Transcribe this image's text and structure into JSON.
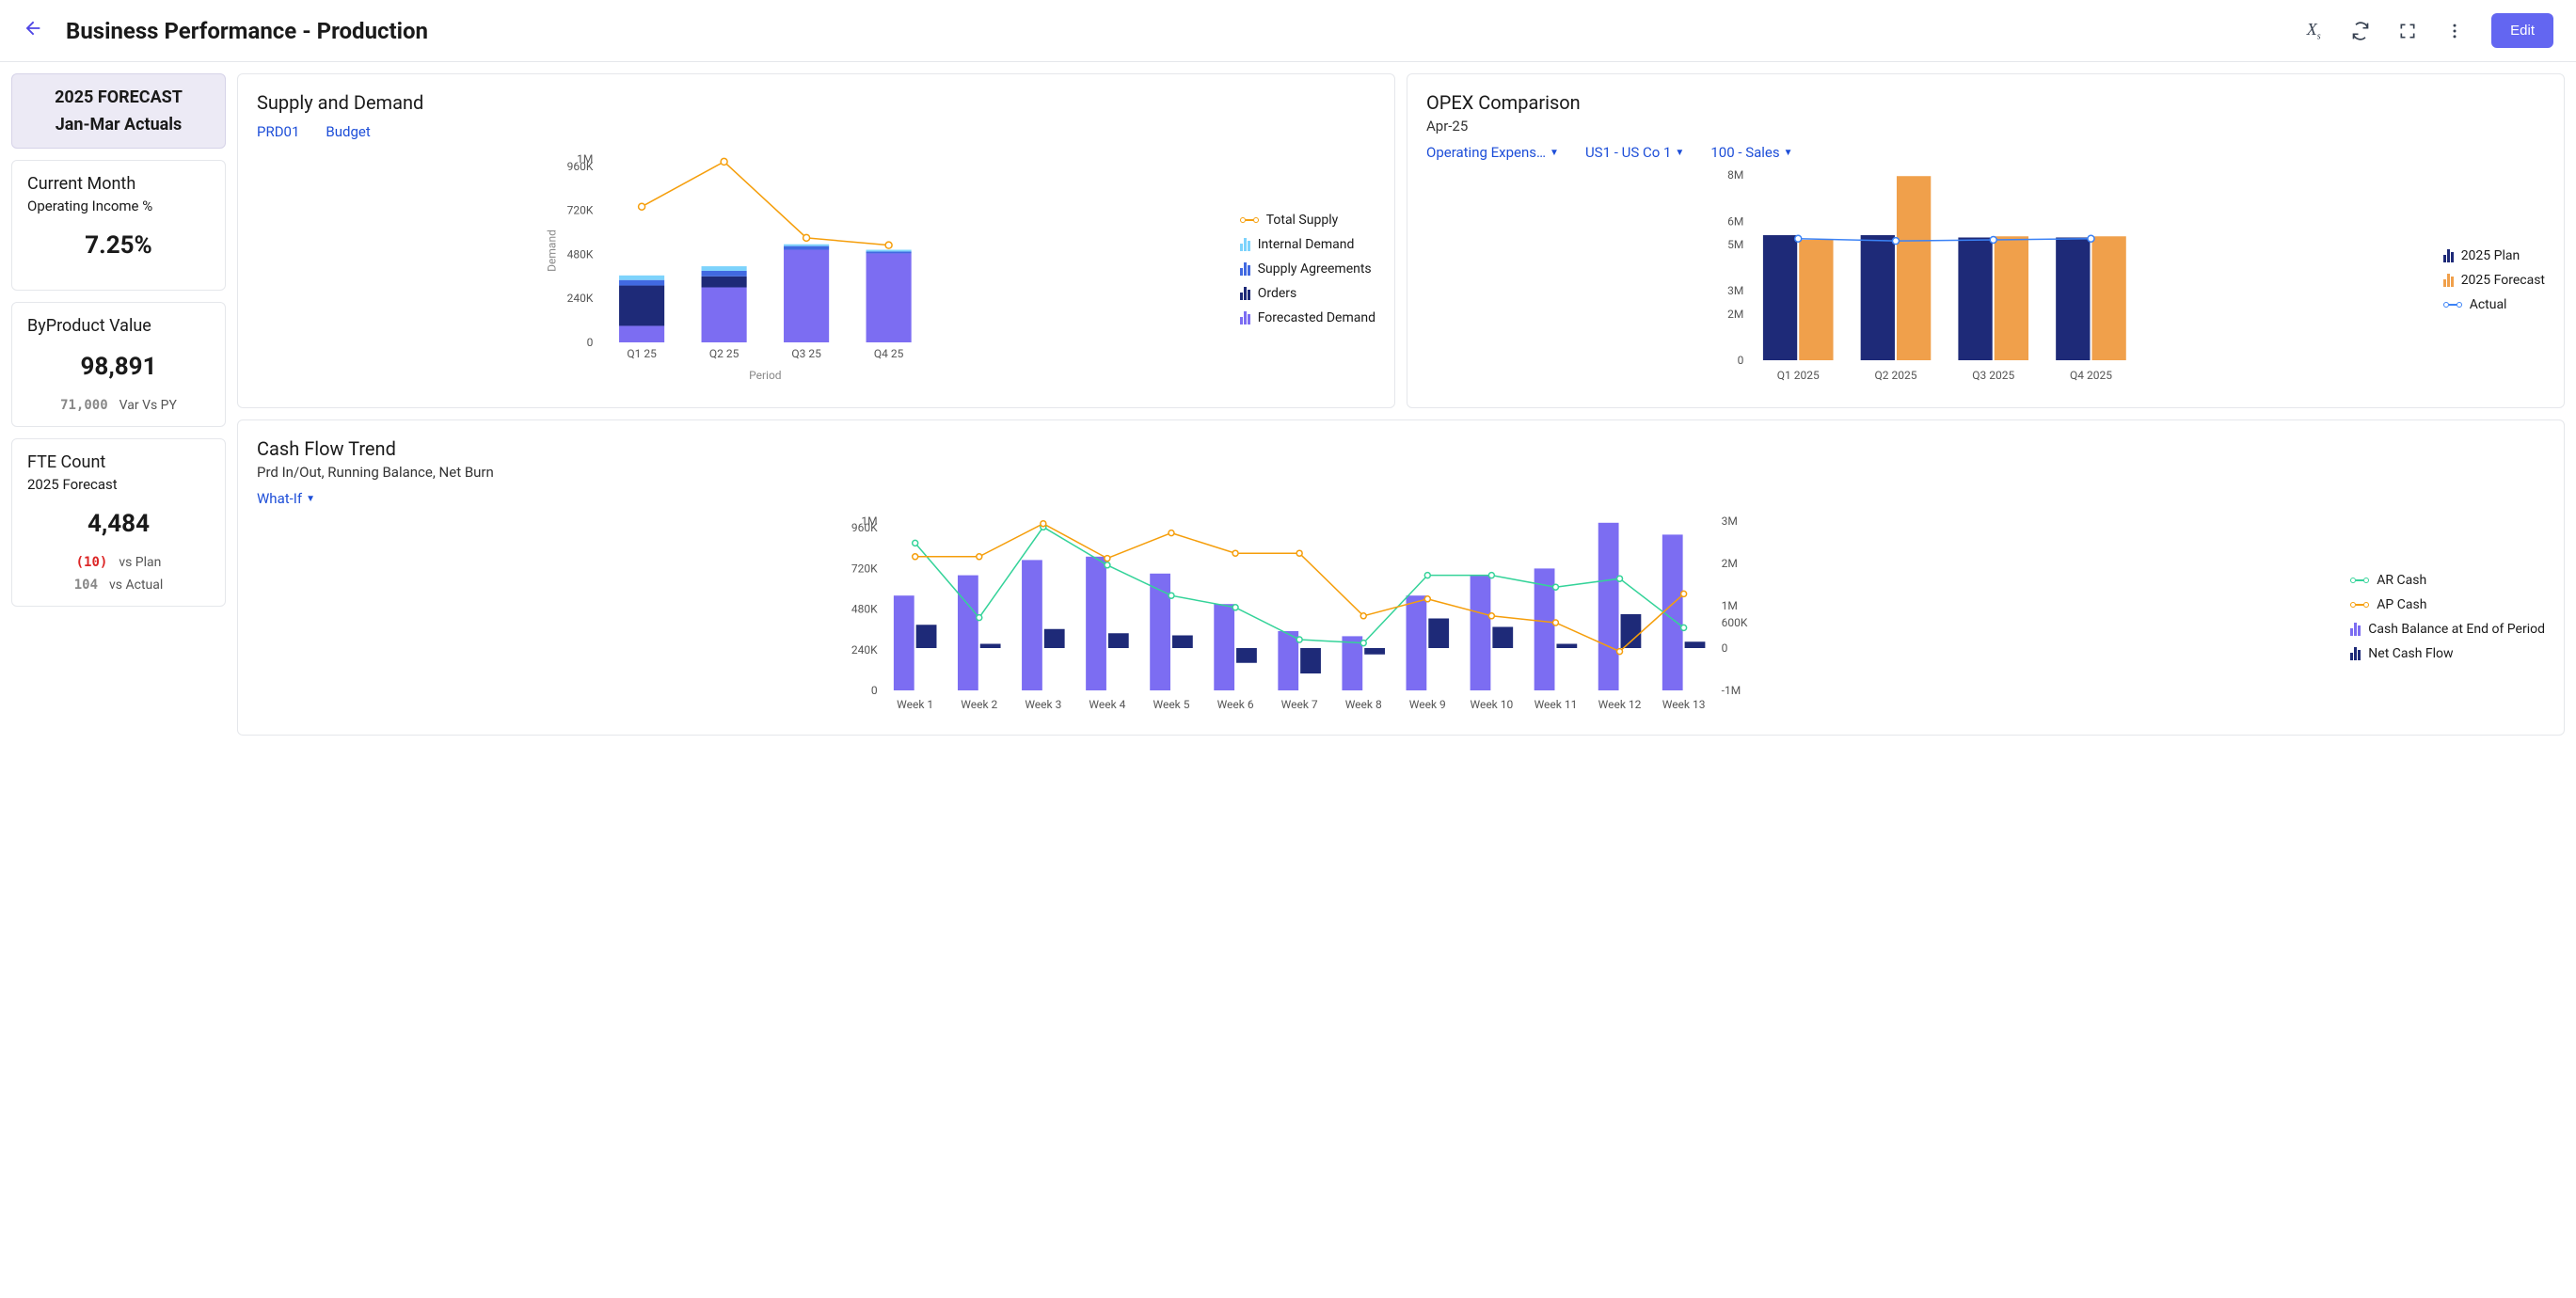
{
  "header": {
    "title": "Business Performance - Production",
    "edit_label": "Edit"
  },
  "sidebar": {
    "forecast": {
      "line1": "2025 FORECAST",
      "line2": "Jan-Mar Actuals"
    },
    "kpi1": {
      "title": "Current Month",
      "sub": "Operating Income %",
      "value": "7.25%"
    },
    "kpi2": {
      "title": "ByProduct Value",
      "value": "98,891",
      "var_num": "71,000",
      "var_label": "Var Vs PY"
    },
    "kpi3": {
      "title": "FTE Count",
      "sub": "2025 Forecast",
      "value": "4,484",
      "r1_num": "(10)",
      "r1_label": "vs Plan",
      "r1_neg": true,
      "r2_num": "104",
      "r2_label": "vs Actual"
    }
  },
  "supply_demand": {
    "title": "Supply and Demand",
    "filters": [
      "PRD01",
      "Budget"
    ],
    "type": "stacked-bar-with-line",
    "x_categories": [
      "Q1 25",
      "Q2 25",
      "Q3 25",
      "Q4 25"
    ],
    "x_axis_label": "Period",
    "y_axis_label": "Demand",
    "y_ticks": [
      0,
      240000,
      480000,
      720000,
      960000,
      1000000
    ],
    "y_tick_labels": [
      "0",
      "240K",
      "480K",
      "720K",
      "960K",
      "1M"
    ],
    "ylim": [
      0,
      1000000
    ],
    "series": {
      "forecasted_demand": {
        "label": "Forecasted Demand",
        "color": "#7c6df2",
        "values": [
          90000,
          300000,
          505000,
          485000
        ]
      },
      "orders": {
        "label": "Orders",
        "color": "#1e2a78",
        "values": [
          220000,
          60000,
          0,
          0
        ]
      },
      "supply_agreements": {
        "label": "Supply Agreements",
        "color": "#4169e1",
        "values": [
          30000,
          30000,
          20000,
          10000
        ]
      },
      "internal_demand": {
        "label": "Internal Demand",
        "color": "#7dd3fc",
        "values": [
          25000,
          25000,
          10000,
          10000
        ]
      },
      "total_supply_line": {
        "label": "Total Supply",
        "color": "#f59e0b",
        "values": [
          740000,
          985000,
          570000,
          530000
        ]
      }
    },
    "bar_width": 0.55,
    "background_color": "#ffffff",
    "grid_color": "#eeeeee"
  },
  "opex": {
    "title": "OPEX Comparison",
    "sub": "Apr-25",
    "filters": [
      "Operating Expens…",
      "US1 - US Co 1",
      "100 - Sales"
    ],
    "type": "grouped-bar-with-line",
    "x_categories": [
      "Q1 2025",
      "Q2 2025",
      "Q3 2025",
      "Q4 2025"
    ],
    "y_ticks": [
      0,
      2000000,
      3000000,
      5000000,
      6000000,
      8000000
    ],
    "y_tick_labels": [
      "0",
      "2M",
      "3M",
      "5M",
      "6M",
      "8M"
    ],
    "ylim": [
      0,
      8000000
    ],
    "series": {
      "plan": {
        "label": "2025 Plan",
        "color": "#1e2a78",
        "values": [
          5400000,
          5400000,
          5300000,
          5300000
        ]
      },
      "forecast": {
        "label": "2025 Forecast",
        "color": "#f0a04b",
        "values": [
          5200000,
          7950000,
          5350000,
          5350000
        ]
      },
      "actual_line": {
        "label": "Actual",
        "color": "#3b82f6",
        "values": [
          5250000,
          5150000,
          5200000,
          5250000
        ]
      }
    },
    "bar_width": 0.35,
    "background_color": "#ffffff"
  },
  "cashflow": {
    "title": "Cash Flow Trend",
    "sub": "Prd In/Out, Running Balance, Net Burn",
    "filter": "What-If",
    "type": "combo-bar-line-dual-axis",
    "x_categories": [
      "Week 1",
      "Week 2",
      "Week 3",
      "Week 4",
      "Week 5",
      "Week 6",
      "Week 7",
      "Week 8",
      "Week 9",
      "Week 10",
      "Week 11",
      "Week 12",
      "Week 13"
    ],
    "y_left_ticks": [
      0,
      240000,
      480000,
      720000,
      960000,
      1000000
    ],
    "y_left_labels": [
      "0",
      "240K",
      "480K",
      "720K",
      "960K",
      "1M"
    ],
    "y_left_lim": [
      0,
      1000000
    ],
    "y_right_ticks": [
      -1000000,
      0,
      600000,
      1000000,
      2000000,
      3000000
    ],
    "y_right_labels": [
      "-1M",
      "0",
      "600K",
      "1M",
      "2M",
      "3M"
    ],
    "y_right_lim": [
      -1000000,
      3000000
    ],
    "series": {
      "cash_balance": {
        "label": "Cash Balance at End of Period",
        "color": "#7c6df2",
        "axis": "left",
        "values": [
          560000,
          680000,
          770000,
          790000,
          690000,
          510000,
          350000,
          320000,
          560000,
          680000,
          720000,
          990000,
          920000
        ]
      },
      "net_cash_flow": {
        "label": "Net Cash Flow",
        "color": "#1e2a78",
        "axis": "right",
        "values": [
          550000,
          100000,
          450000,
          350000,
          300000,
          -350000,
          -600000,
          -150000,
          700000,
          500000,
          100000,
          800000,
          150000
        ]
      },
      "ar_cash": {
        "label": "AR Cash",
        "color": "#34d399",
        "axis": "left",
        "values": [
          870000,
          430000,
          965000,
          740000,
          560000,
          490000,
          300000,
          280000,
          680000,
          680000,
          610000,
          660000,
          370000
        ]
      },
      "ap_cash": {
        "label": "AP Cash",
        "color": "#f59e0b",
        "axis": "left",
        "values": [
          790000,
          790000,
          985000,
          780000,
          930000,
          810000,
          810000,
          440000,
          540000,
          440000,
          400000,
          230000,
          570000
        ]
      }
    },
    "bar_width": 0.32,
    "background_color": "#ffffff"
  },
  "colors": {
    "link": "#1d4ed8",
    "border": "#e5e7eb",
    "highlight_bg": "#eceaf5",
    "accent": "#6366f1"
  }
}
